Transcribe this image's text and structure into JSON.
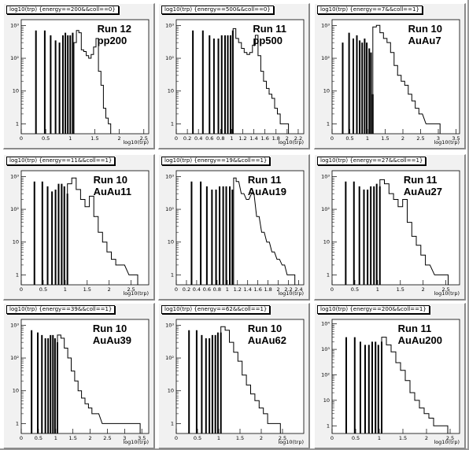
{
  "chart_data": [
    {
      "type": "bar",
      "title": "log10(trp) {energy==200&&coll==0}",
      "annotation": [
        "Run 12",
        "pp200"
      ],
      "xlabel": "log10(trp)",
      "xlim": [
        0,
        2.6
      ],
      "xticks": [
        "0",
        "0.5",
        "1",
        "1.5",
        "2",
        "2.5"
      ],
      "ylim_log": [
        0.5,
        1500
      ],
      "yticks": [
        "1",
        "10",
        "10²",
        "10³"
      ],
      "spikes": [
        [
          0.3,
          700
        ],
        [
          0.48,
          700
        ],
        [
          0.6,
          500
        ],
        [
          0.7,
          350
        ],
        [
          0.78,
          300
        ],
        [
          0.85,
          500
        ],
        [
          0.9,
          600
        ],
        [
          0.95,
          500
        ],
        [
          1.0,
          500
        ],
        [
          1.05,
          600
        ]
      ],
      "hist": [
        [
          1.1,
          300
        ],
        [
          1.15,
          700
        ],
        [
          1.2,
          600
        ],
        [
          1.25,
          180
        ],
        [
          1.3,
          160
        ],
        [
          1.35,
          120
        ],
        [
          1.4,
          100
        ],
        [
          1.45,
          130
        ],
        [
          1.5,
          220
        ],
        [
          1.55,
          400
        ],
        [
          1.6,
          40
        ],
        [
          1.65,
          15
        ],
        [
          1.7,
          3
        ],
        [
          1.75,
          1.5
        ],
        [
          1.8,
          1
        ]
      ]
    },
    {
      "type": "bar",
      "title": "log10(trp) {energy==500&&coll==0}",
      "annotation": [
        "Run 11",
        "pp500"
      ],
      "xlabel": "log10(trp)",
      "xlim": [
        0,
        2.3
      ],
      "xticks": [
        "0",
        "0.2",
        "0.4",
        "0.6",
        "0.8",
        "1",
        "1.2",
        "1.4",
        "1.6",
        "1.8",
        "2",
        "2.2"
      ],
      "ylim_log": [
        0.5,
        1500
      ],
      "yticks": [
        "1",
        "10",
        "10²",
        "10³"
      ],
      "spikes": [
        [
          0.3,
          700
        ],
        [
          0.48,
          700
        ],
        [
          0.6,
          500
        ],
        [
          0.68,
          400
        ],
        [
          0.76,
          400
        ],
        [
          0.82,
          500
        ],
        [
          0.88,
          500
        ],
        [
          0.93,
          500
        ],
        [
          0.98,
          500
        ],
        [
          1.02,
          700
        ]
      ],
      "hist": [
        [
          1.05,
          800
        ],
        [
          1.1,
          400
        ],
        [
          1.15,
          300
        ],
        [
          1.2,
          200
        ],
        [
          1.25,
          150
        ],
        [
          1.3,
          130
        ],
        [
          1.35,
          150
        ],
        [
          1.4,
          250
        ],
        [
          1.45,
          500
        ],
        [
          1.5,
          120
        ],
        [
          1.55,
          40
        ],
        [
          1.6,
          20
        ],
        [
          1.65,
          12
        ],
        [
          1.7,
          8
        ],
        [
          1.75,
          6
        ],
        [
          1.8,
          3
        ],
        [
          1.85,
          2
        ],
        [
          1.9,
          1
        ],
        [
          2.0,
          1
        ]
      ]
    },
    {
      "type": "bar",
      "title": "log10(trp) {energy==7&&coll==1}",
      "annotation": [
        "Run 10",
        "AuAu7"
      ],
      "xlabel": "log10(trp)",
      "xlim": [
        0,
        3.6
      ],
      "xticks": [
        "0",
        "0.5",
        "1",
        "1.5",
        "2",
        "2.5",
        "3",
        "3.5"
      ],
      "ylim_log": [
        0.5,
        1500
      ],
      "yticks": [
        "1",
        "10",
        "10²",
        "10³"
      ],
      "spikes": [
        [
          0.3,
          300
        ],
        [
          0.48,
          600
        ],
        [
          0.6,
          400
        ],
        [
          0.7,
          500
        ],
        [
          0.78,
          350
        ],
        [
          0.85,
          300
        ],
        [
          0.92,
          400
        ],
        [
          0.98,
          300
        ],
        [
          1.05,
          200
        ],
        [
          1.1,
          150
        ],
        [
          1.15,
          8
        ]
      ],
      "hist": [
        [
          1.2,
          900
        ],
        [
          1.3,
          1000
        ],
        [
          1.4,
          600
        ],
        [
          1.5,
          400
        ],
        [
          1.6,
          300
        ],
        [
          1.7,
          150
        ],
        [
          1.8,
          60
        ],
        [
          1.9,
          30
        ],
        [
          2.0,
          20
        ],
        [
          2.1,
          15
        ],
        [
          2.2,
          8
        ],
        [
          2.3,
          5
        ],
        [
          2.4,
          3
        ],
        [
          2.5,
          2
        ],
        [
          2.7,
          1
        ],
        [
          3.0,
          1
        ]
      ]
    },
    {
      "type": "bar",
      "title": "log10(trp) {energy==11&&coll==1}",
      "annotation": [
        "Run 10",
        "AuAu11"
      ],
      "xlabel": "log10(trp)",
      "xlim": [
        0,
        2.9
      ],
      "xticks": [
        "0",
        "0.5",
        "1",
        "1.5",
        "2",
        "2.5"
      ],
      "ylim_log": [
        0.5,
        1500
      ],
      "yticks": [
        "1",
        "10",
        "10²",
        "10³"
      ],
      "spikes": [
        [
          0.3,
          700
        ],
        [
          0.48,
          700
        ],
        [
          0.6,
          500
        ],
        [
          0.7,
          350
        ],
        [
          0.78,
          400
        ],
        [
          0.85,
          600
        ],
        [
          0.92,
          600
        ],
        [
          0.98,
          500
        ],
        [
          1.05,
          300
        ]
      ],
      "hist": [
        [
          1.1,
          600
        ],
        [
          1.2,
          900
        ],
        [
          1.3,
          400
        ],
        [
          1.4,
          200
        ],
        [
          1.5,
          120
        ],
        [
          1.6,
          250
        ],
        [
          1.7,
          60
        ],
        [
          1.8,
          20
        ],
        [
          1.9,
          10
        ],
        [
          2.0,
          5
        ],
        [
          2.1,
          3
        ],
        [
          2.2,
          2
        ],
        [
          2.3,
          2
        ],
        [
          2.5,
          1
        ],
        [
          2.6,
          1
        ]
      ]
    },
    {
      "type": "bar",
      "title": "log10(trp) {energy==19&&coll==1}",
      "annotation": [
        "Run 11",
        "AuAu19"
      ],
      "xlabel": "log10(trp)",
      "xlim": [
        0,
        2.5
      ],
      "xticks": [
        "0",
        "0.2",
        "0.4",
        "0.6",
        "0.8",
        "1",
        "1.2",
        "1.4",
        "1.6",
        "1.8",
        "2",
        "2.2",
        "2.4"
      ],
      "ylim_log": [
        0.5,
        1500
      ],
      "yticks": [
        "1",
        "10",
        "10²",
        "10³"
      ],
      "spikes": [
        [
          0.3,
          700
        ],
        [
          0.48,
          700
        ],
        [
          0.6,
          500
        ],
        [
          0.7,
          400
        ],
        [
          0.78,
          400
        ],
        [
          0.85,
          500
        ],
        [
          0.92,
          500
        ],
        [
          0.98,
          500
        ],
        [
          1.05,
          500
        ],
        [
          1.1,
          400
        ]
      ],
      "hist": [
        [
          1.15,
          900
        ],
        [
          1.2,
          700
        ],
        [
          1.3,
          300
        ],
        [
          1.4,
          200
        ],
        [
          1.5,
          300
        ],
        [
          1.6,
          60
        ],
        [
          1.7,
          20
        ],
        [
          1.8,
          10
        ],
        [
          1.9,
          5
        ],
        [
          2.0,
          3
        ],
        [
          2.1,
          2
        ],
        [
          2.2,
          1
        ],
        [
          2.3,
          1
        ]
      ]
    },
    {
      "type": "bar",
      "title": "log10(trp) {energy==27&&coll==1}",
      "annotation": [
        "Run 11",
        "AuAu27"
      ],
      "xlabel": "log10(trp)",
      "xlim": [
        0,
        2.8
      ],
      "xticks": [
        "0",
        "0.5",
        "1",
        "1.5",
        "2",
        "2.5"
      ],
      "ylim_log": [
        0.5,
        1500
      ],
      "yticks": [
        "1",
        "10",
        "10²",
        "10³"
      ],
      "spikes": [
        [
          0.3,
          700
        ],
        [
          0.48,
          700
        ],
        [
          0.6,
          500
        ],
        [
          0.7,
          400
        ],
        [
          0.78,
          400
        ],
        [
          0.85,
          500
        ],
        [
          0.92,
          500
        ],
        [
          0.98,
          600
        ],
        [
          1.05,
          500
        ]
      ],
      "hist": [
        [
          1.1,
          800
        ],
        [
          1.2,
          600
        ],
        [
          1.3,
          300
        ],
        [
          1.4,
          200
        ],
        [
          1.5,
          120
        ],
        [
          1.6,
          200
        ],
        [
          1.7,
          40
        ],
        [
          1.8,
          15
        ],
        [
          1.9,
          8
        ],
        [
          2.0,
          4
        ],
        [
          2.1,
          2
        ],
        [
          2.3,
          1
        ],
        [
          2.5,
          1
        ]
      ]
    },
    {
      "type": "bar",
      "title": "log10(trp) {energy==39&&coll==1}",
      "annotation": [
        "Run 10",
        "AuAu39"
      ],
      "xlabel": "log10(trp)",
      "xlim": [
        0,
        3.7
      ],
      "xticks": [
        "0",
        "0.5",
        "1",
        "1.5",
        "2",
        "2.5",
        "3",
        "3.5"
      ],
      "ylim_log": [
        0.5,
        1500
      ],
      "yticks": [
        "1",
        "10",
        "10²",
        "10³"
      ],
      "spikes": [
        [
          0.3,
          700
        ],
        [
          0.48,
          600
        ],
        [
          0.6,
          500
        ],
        [
          0.7,
          400
        ],
        [
          0.78,
          400
        ],
        [
          0.85,
          500
        ],
        [
          0.92,
          500
        ],
        [
          0.98,
          400
        ],
        [
          1.05,
          300
        ]
      ],
      "hist": [
        [
          1.1,
          500
        ],
        [
          1.2,
          400
        ],
        [
          1.3,
          200
        ],
        [
          1.4,
          100
        ],
        [
          1.5,
          40
        ],
        [
          1.6,
          20
        ],
        [
          1.7,
          10
        ],
        [
          1.8,
          6
        ],
        [
          1.9,
          4
        ],
        [
          2.0,
          3
        ],
        [
          2.1,
          2
        ],
        [
          2.2,
          2
        ],
        [
          2.4,
          1
        ],
        [
          2.6,
          1
        ],
        [
          3.0,
          1
        ],
        [
          3.4,
          1
        ]
      ]
    },
    {
      "type": "bar",
      "title": "log10(trp) {energy==62&&coll==1}",
      "annotation": [
        "Run 10",
        "AuAu62"
      ],
      "xlabel": "log10(trp)",
      "xlim": [
        0,
        3.0
      ],
      "xticks": [
        "0",
        "0.5",
        "1",
        "1.5",
        "2",
        "2.5"
      ],
      "ylim_log": [
        0.5,
        1500
      ],
      "yticks": [
        "1",
        "10",
        "10²",
        "10³"
      ],
      "spikes": [
        [
          0.3,
          700
        ],
        [
          0.48,
          700
        ],
        [
          0.6,
          500
        ],
        [
          0.7,
          400
        ],
        [
          0.78,
          400
        ],
        [
          0.85,
          500
        ],
        [
          0.92,
          500
        ],
        [
          0.98,
          600
        ],
        [
          1.05,
          600
        ]
      ],
      "hist": [
        [
          1.1,
          900
        ],
        [
          1.2,
          700
        ],
        [
          1.3,
          300
        ],
        [
          1.4,
          150
        ],
        [
          1.5,
          80
        ],
        [
          1.6,
          30
        ],
        [
          1.7,
          15
        ],
        [
          1.8,
          8
        ],
        [
          1.9,
          5
        ],
        [
          2.0,
          3
        ],
        [
          2.1,
          2
        ],
        [
          2.2,
          1
        ],
        [
          2.4,
          1
        ]
      ]
    },
    {
      "type": "bar",
      "title": "log10(trp) {energy==200&&coll==1}",
      "annotation": [
        "Run 11",
        "AuAu200"
      ],
      "xlabel": "log10(trp)",
      "xlim": [
        0,
        2.7
      ],
      "xticks": [
        "0",
        "0.5",
        "1",
        "1.5",
        "2",
        "2.5"
      ],
      "ylim_log": [
        0.5,
        15000
      ],
      "yticks": [
        "1",
        "10",
        "10²",
        "10³",
        "10⁴"
      ],
      "spikes": [
        [
          0.3,
          3000
        ],
        [
          0.48,
          3000
        ],
        [
          0.6,
          2000
        ],
        [
          0.7,
          1500
        ],
        [
          0.78,
          1500
        ],
        [
          0.85,
          2000
        ],
        [
          0.92,
          2000
        ],
        [
          0.98,
          1500
        ],
        [
          1.05,
          2000
        ]
      ],
      "hist": [
        [
          1.1,
          3000
        ],
        [
          1.2,
          1500
        ],
        [
          1.3,
          800
        ],
        [
          1.4,
          300
        ],
        [
          1.5,
          150
        ],
        [
          1.6,
          60
        ],
        [
          1.7,
          20
        ],
        [
          1.8,
          10
        ],
        [
          1.9,
          5
        ],
        [
          2.0,
          3
        ],
        [
          2.1,
          2
        ],
        [
          2.2,
          1
        ],
        [
          2.4,
          1
        ]
      ]
    }
  ]
}
